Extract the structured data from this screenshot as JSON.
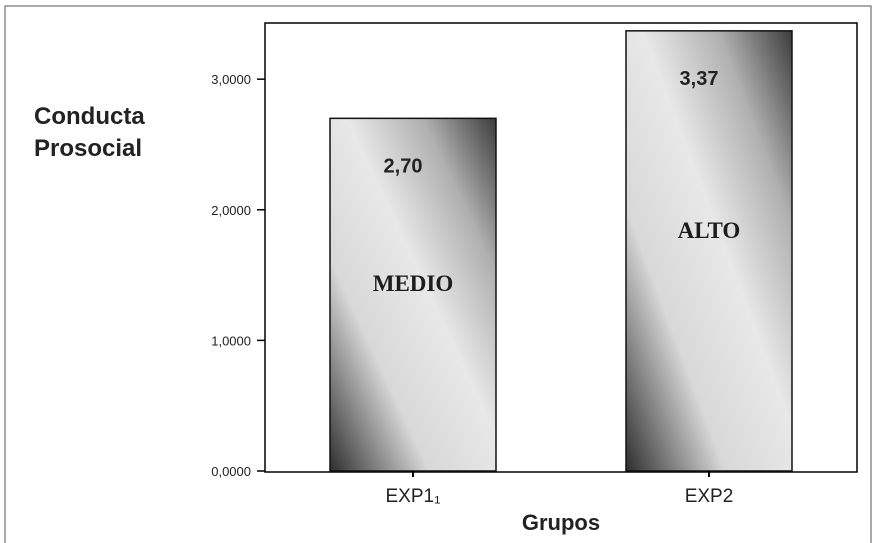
{
  "chart_data": {
    "type": "bar",
    "ylabel_lines": [
      "Conducta",
      "Prosocial"
    ],
    "xlabel": "Grupos",
    "categories": [
      "EXP1₁",
      "EXP2"
    ],
    "values": [
      2.7,
      3.37
    ],
    "value_labels": [
      "2,70",
      "3,37"
    ],
    "bar_labels": [
      "MEDIO",
      "ALTO"
    ],
    "yticks": [
      0,
      1,
      2,
      3
    ],
    "ytick_labels": [
      "0,0000",
      "1,0000",
      "2,0000",
      "3,0000"
    ],
    "ylim": [
      0,
      3.43
    ],
    "grid": false,
    "legend": "none",
    "colors": {
      "bar_light": "#e6e6e6",
      "bar_dark": "#3a3a3a",
      "axis": "#000000",
      "text": "#222222"
    }
  }
}
